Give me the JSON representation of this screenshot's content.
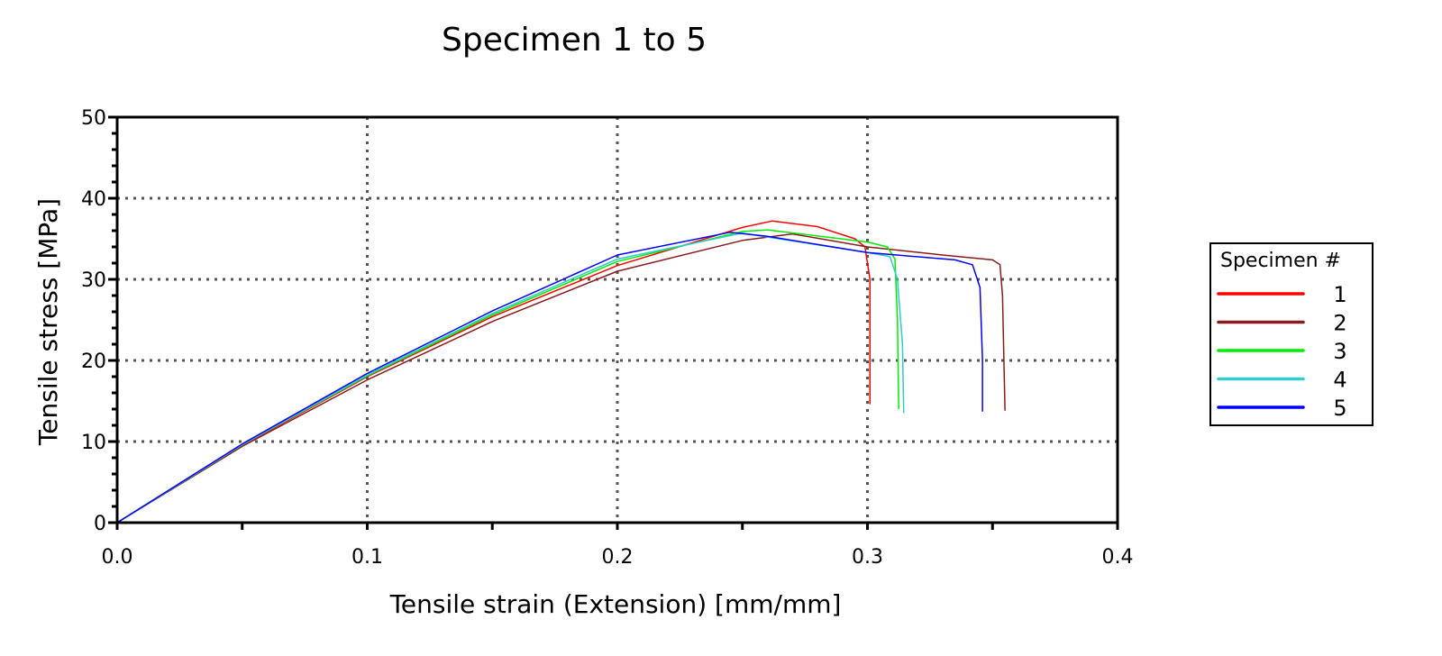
{
  "chart_data": {
    "type": "line",
    "title": "Specimen 1 to 5",
    "xlabel": "Tensile strain (Extension) [mm/mm]",
    "ylabel": "Tensile stress [MPa]",
    "xlim": [
      0,
      0.4
    ],
    "ylim": [
      0,
      50
    ],
    "xticks": [
      "0.0",
      "0.1",
      "0.2",
      "0.3",
      "0.4"
    ],
    "yticks": [
      "0",
      "10",
      "20",
      "30",
      "40",
      "50"
    ],
    "grid": true,
    "legend": {
      "title": "Specimen #",
      "placement": "right"
    },
    "series": [
      {
        "name": "1",
        "color": "#ff0000",
        "x": [
          0,
          0.05,
          0.1,
          0.15,
          0.2,
          0.25,
          0.262,
          0.28,
          0.295,
          0.299,
          0.301,
          0.301
        ],
        "y": [
          0,
          9.5,
          18,
          25.4,
          31.7,
          36.4,
          37.2,
          36.5,
          35,
          34,
          30,
          14.6
        ]
      },
      {
        "name": "2",
        "color": "#8b1a1a",
        "x": [
          0,
          0.05,
          0.1,
          0.15,
          0.2,
          0.25,
          0.27,
          0.3,
          0.33,
          0.35,
          0.353,
          0.354,
          0.355
        ],
        "y": [
          0,
          9.4,
          17.6,
          24.8,
          31,
          34.8,
          35.6,
          34,
          33,
          32.4,
          31.8,
          28,
          13.8
        ]
      },
      {
        "name": "3",
        "color": "#00ee00",
        "x": [
          0,
          0.05,
          0.1,
          0.15,
          0.2,
          0.25,
          0.26,
          0.3,
          0.308,
          0.311,
          0.312,
          0.3125
        ],
        "y": [
          0,
          9.6,
          18.1,
          25.6,
          32.2,
          35.9,
          36.1,
          34.6,
          34,
          32.5,
          25,
          14
        ]
      },
      {
        "name": "4",
        "color": "#33cccc",
        "x": [
          0,
          0.05,
          0.1,
          0.15,
          0.2,
          0.25,
          0.3,
          0.309,
          0.312,
          0.314,
          0.3145
        ],
        "y": [
          0,
          9.6,
          18.2,
          25.8,
          32.5,
          35.7,
          33.3,
          32.8,
          30,
          22,
          13.5
        ]
      },
      {
        "name": "5",
        "color": "#0000ff",
        "x": [
          0,
          0.05,
          0.1,
          0.15,
          0.2,
          0.245,
          0.26,
          0.3,
          0.335,
          0.342,
          0.345,
          0.346,
          0.346
        ],
        "y": [
          0,
          9.7,
          18.4,
          26.1,
          33,
          35.8,
          35.3,
          33.3,
          32.4,
          31.8,
          29,
          20,
          13.7
        ]
      }
    ]
  }
}
